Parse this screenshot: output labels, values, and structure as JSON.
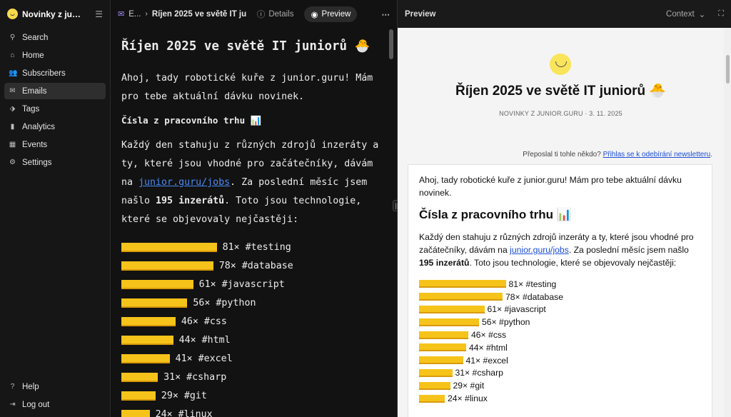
{
  "sidebar": {
    "brand": "Novinky z junior.guru",
    "items": [
      {
        "label": "Search",
        "icon": "search-icon"
      },
      {
        "label": "Home",
        "icon": "home-icon"
      },
      {
        "label": "Subscribers",
        "icon": "users-icon"
      },
      {
        "label": "Emails",
        "icon": "email-icon",
        "active": true
      },
      {
        "label": "Tags",
        "icon": "tag-icon"
      },
      {
        "label": "Analytics",
        "icon": "analytics-icon"
      },
      {
        "label": "Events",
        "icon": "calendar-icon"
      },
      {
        "label": "Settings",
        "icon": "gear-icon"
      }
    ],
    "bottom_items": [
      {
        "label": "Help",
        "icon": "help-icon"
      },
      {
        "label": "Log out",
        "icon": "logout-icon"
      }
    ]
  },
  "editor": {
    "breadcrumb_root": "E...",
    "breadcrumb_title": "Říjen 2025 ve světě IT juniorů",
    "tab_details": "Details",
    "tab_preview": "Preview",
    "heading": "Říjen 2025 ve světě IT juniorů 🐣",
    "intro": "Ahoj, tady robotické kuře z junior.guru! Mám pro tebe aktuální dávku novinek.",
    "section_heading": "Čísla z pracovního trhu 📊",
    "para_before_link": "Každý den stahuju z různých zdrojů inzeráty a ty, které jsou vhodné pro začátečníky, dávám na ",
    "link_text": "junior.guru/jobs",
    "para_after_link": ". Za poslední měsíc jsem našlo ",
    "para_bold": "195 inzerátů",
    "para_end": ". Toto jsou technologie, které se objevovaly nejčastěji:"
  },
  "preview": {
    "title": "Preview",
    "context_label": "Context",
    "heading": "Říjen 2025 ve světě IT juniorů 🐣",
    "meta": "NOVINKY Z JUNIOR.GURU · 3. 11. 2025",
    "forward_text": "Přeposlal ti tohle někdo? ",
    "forward_link": "Přihlas se k odebírání newsletteru",
    "forward_end": "."
  },
  "tech_stats": [
    {
      "label": "81× #testing",
      "count": 81
    },
    {
      "label": "78× #database",
      "count": 78
    },
    {
      "label": "61× #javascript",
      "count": 61
    },
    {
      "label": "56× #python",
      "count": 56
    },
    {
      "label": "46× #css",
      "count": 46
    },
    {
      "label": "44× #html",
      "count": 44
    },
    {
      "label": "41× #excel",
      "count": 41
    },
    {
      "label": "31× #csharp",
      "count": 31
    },
    {
      "label": "29× #git",
      "count": 29
    },
    {
      "label": "24× #linux",
      "count": 24
    }
  ],
  "colors": {
    "accent_purple": "#a78bfa",
    "bar_yellow": "#f6c31a",
    "link_blue": "#1d4fd8"
  }
}
